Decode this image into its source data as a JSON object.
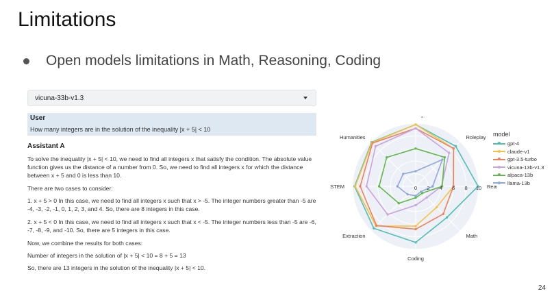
{
  "slide": {
    "title": "Limitations",
    "bullet": "Open models limitations in Math, Reasoning, Coding",
    "page_number": "24"
  },
  "demo": {
    "selected_model": "vicuna-33b-v1.3",
    "user_label": "User",
    "question": "How many integers are in the solution of the inequality |x + 5| < 10",
    "assistant_label": "Assistant A",
    "answer_paragraphs": [
      "To solve the inequality |x + 5| < 10, we need to find all integers x that satisfy the condition. The absolute value function gives us the distance of a number from 0. So, we need to find all integers x for which the distance between x + 5 and 0 is less than 10.",
      "There are two cases to consider:",
      "1. x + 5 > 0 In this case, we need to find all integers x such that x > -5. The integer numbers greater than -5 are -4, -3, -2, -1, 0, 1, 2, 3, and 4. So, there are 8 integers in this case.",
      "2. x + 5 < 0 In this case, we need to find all integers x such that x < -5. The integer numbers less than -5 are -6, -7, -8, -9, and -10. So, there are 5 integers in this case.",
      "Now, we combine the results for both cases:",
      "Number of integers in the solution of |x + 5| < 10 = 8 + 5 = 13",
      "So, there are 13 integers in the solution of the inequality |x + 5| < 10."
    ]
  },
  "chart_data": {
    "type": "radar",
    "categories": [
      "Writing",
      "Roleplay",
      "Reasoning",
      "Math",
      "Coding",
      "Extraction",
      "STEM",
      "Humanities"
    ],
    "range": [
      0,
      10
    ],
    "tick_values": [
      0,
      2,
      4,
      6,
      8,
      10
    ],
    "tick_labels": [
      "0",
      "2",
      "4",
      "6",
      "8",
      "10"
    ],
    "legend_title": "model",
    "series": [
      {
        "name": "gpt-4",
        "color": "#4fbfb4",
        "values": [
          9.8,
          9.0,
          9.9,
          7.0,
          8.9,
          9.4,
          9.7,
          9.9
        ]
      },
      {
        "name": "claude-v1",
        "color": "#f5c242",
        "values": [
          9.8,
          8.5,
          6.0,
          4.7,
          6.3,
          8.9,
          9.6,
          9.8
        ]
      },
      {
        "name": "gpt-3.5-turbo",
        "color": "#f0805a",
        "values": [
          9.2,
          8.5,
          6.0,
          6.2,
          6.8,
          8.8,
          8.8,
          9.7
        ]
      },
      {
        "name": "vicuna-13b-v1.3",
        "color": "#c8a4e0",
        "values": [
          9.2,
          7.5,
          4.1,
          2.5,
          3.0,
          6.3,
          7.8,
          9.0
        ]
      },
      {
        "name": "alpaca-13b",
        "color": "#5fb84a",
        "values": [
          6.0,
          6.5,
          4.2,
          1.5,
          1.8,
          3.8,
          5.8,
          6.5
        ]
      },
      {
        "name": "llama-13b",
        "color": "#8fa8dc",
        "values": [
          2.4,
          6.0,
          2.7,
          1.2,
          1.5,
          1.8,
          2.9,
          2.8
        ]
      }
    ]
  }
}
